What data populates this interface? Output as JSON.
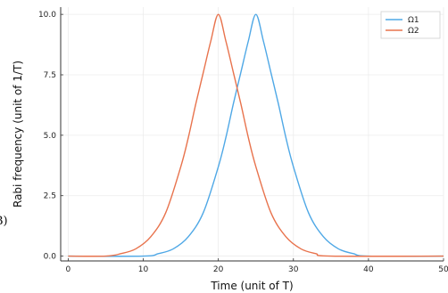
{
  "panel_label": "B)",
  "chart_data": {
    "type": "line",
    "title": "",
    "xlabel": "Time (unit of T)",
    "ylabel": "Rabi frequency (unit of 1/T)",
    "xlim": [
      -1,
      50
    ],
    "ylim": [
      -0.2,
      10.3
    ],
    "xticks": [
      0,
      10,
      20,
      30,
      40,
      50
    ],
    "yticks": [
      0.0,
      2.5,
      5.0,
      7.5,
      10.0
    ],
    "xtick_labels": [
      "0",
      "10",
      "20",
      "30",
      "40",
      "50"
    ],
    "ytick_labels": [
      "0.0",
      "2.5",
      "5.0",
      "7.5",
      "10.0"
    ],
    "grid": true,
    "legend_position": "top-right",
    "series": [
      {
        "name": "Ω1",
        "color": "#4fa8e6",
        "x": [
          0,
          10,
          12,
          14,
          16,
          18,
          20,
          21,
          22,
          23,
          24,
          25,
          26,
          27,
          28,
          29,
          30,
          32,
          34,
          36,
          38,
          40,
          50
        ],
        "y": [
          0.0,
          0.0,
          0.1,
          0.3,
          0.8,
          1.8,
          3.7,
          4.9,
          6.3,
          7.6,
          8.9,
          10.0,
          8.9,
          7.6,
          6.3,
          4.9,
          3.7,
          1.8,
          0.8,
          0.3,
          0.1,
          0.0,
          0.0
        ]
      },
      {
        "name": "Ω2",
        "color": "#e8734d",
        "x": [
          0,
          5,
          7,
          9,
          11,
          13,
          15,
          16,
          17,
          18,
          19,
          20,
          21,
          22,
          23,
          24,
          25,
          27,
          29,
          31,
          33,
          35,
          50
        ],
        "y": [
          0.0,
          0.0,
          0.1,
          0.3,
          0.8,
          1.8,
          3.7,
          4.9,
          6.3,
          7.6,
          8.9,
          10.0,
          8.9,
          7.6,
          6.3,
          4.9,
          3.7,
          1.8,
          0.8,
          0.3,
          0.1,
          0.0,
          0.0
        ]
      }
    ]
  }
}
